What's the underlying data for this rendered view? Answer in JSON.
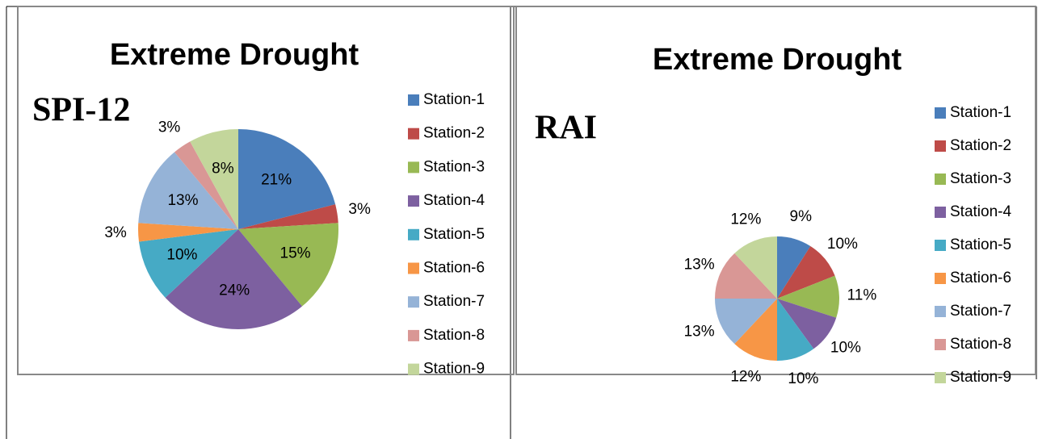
{
  "chart_data": [
    {
      "type": "pie",
      "title": "Extreme Drought",
      "subtitle": "SPI-12",
      "categories": [
        "Station-1",
        "Station-2",
        "Station-3",
        "Station-4",
        "Station-5",
        "Station-6",
        "Station-7",
        "Station-8",
        "Station-9"
      ],
      "values": [
        21,
        3,
        15,
        24,
        10,
        3,
        13,
        3,
        8
      ],
      "value_labels": [
        "21%",
        "3%",
        "15%",
        "24%",
        "10%",
        "3%",
        "13%",
        "3%",
        "8%"
      ],
      "colors": [
        "#4a7ebb",
        "#be4b48",
        "#98b954",
        "#7d60a0",
        "#46aac5",
        "#f79646",
        "#95b3d7",
        "#d99795",
        "#c3d69b"
      ],
      "legend": "right"
    },
    {
      "type": "pie",
      "title": "Extreme Drought",
      "subtitle": "RAI",
      "categories": [
        "Station-1",
        "Station-2",
        "Station-3",
        "Station-4",
        "Station-5",
        "Station-6",
        "Station-7",
        "Station-8",
        "Station-9"
      ],
      "values": [
        9,
        10,
        11,
        10,
        10,
        12,
        13,
        13,
        12
      ],
      "value_labels": [
        "9%",
        "10%",
        "11%",
        "10%",
        "10%",
        "12%",
        "13%",
        "13%",
        "12%"
      ],
      "colors": [
        "#4a7ebb",
        "#be4b48",
        "#98b954",
        "#7d60a0",
        "#46aac5",
        "#f79646",
        "#95b3d7",
        "#d99795",
        "#c3d69b"
      ],
      "legend": "right"
    }
  ]
}
